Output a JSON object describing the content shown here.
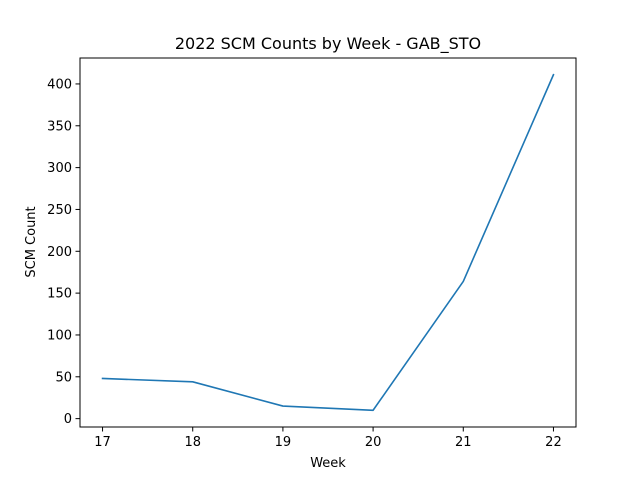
{
  "chart_data": {
    "type": "line",
    "title": "2022 SCM Counts by Week - GAB_STO",
    "xlabel": "Week",
    "ylabel": "SCM Count",
    "x": [
      17,
      18,
      19,
      20,
      21,
      22
    ],
    "series": [
      {
        "values": [
          48,
          44,
          15,
          10,
          164,
          411
        ]
      }
    ],
    "xticks": [
      17,
      18,
      19,
      20,
      21,
      22
    ],
    "yticks": [
      0,
      50,
      100,
      150,
      200,
      250,
      300,
      350,
      400
    ],
    "xlim": [
      16.75,
      22.25
    ],
    "ylim": [
      -10,
      431
    ],
    "grid": false,
    "line_color": "#1f77b4"
  }
}
